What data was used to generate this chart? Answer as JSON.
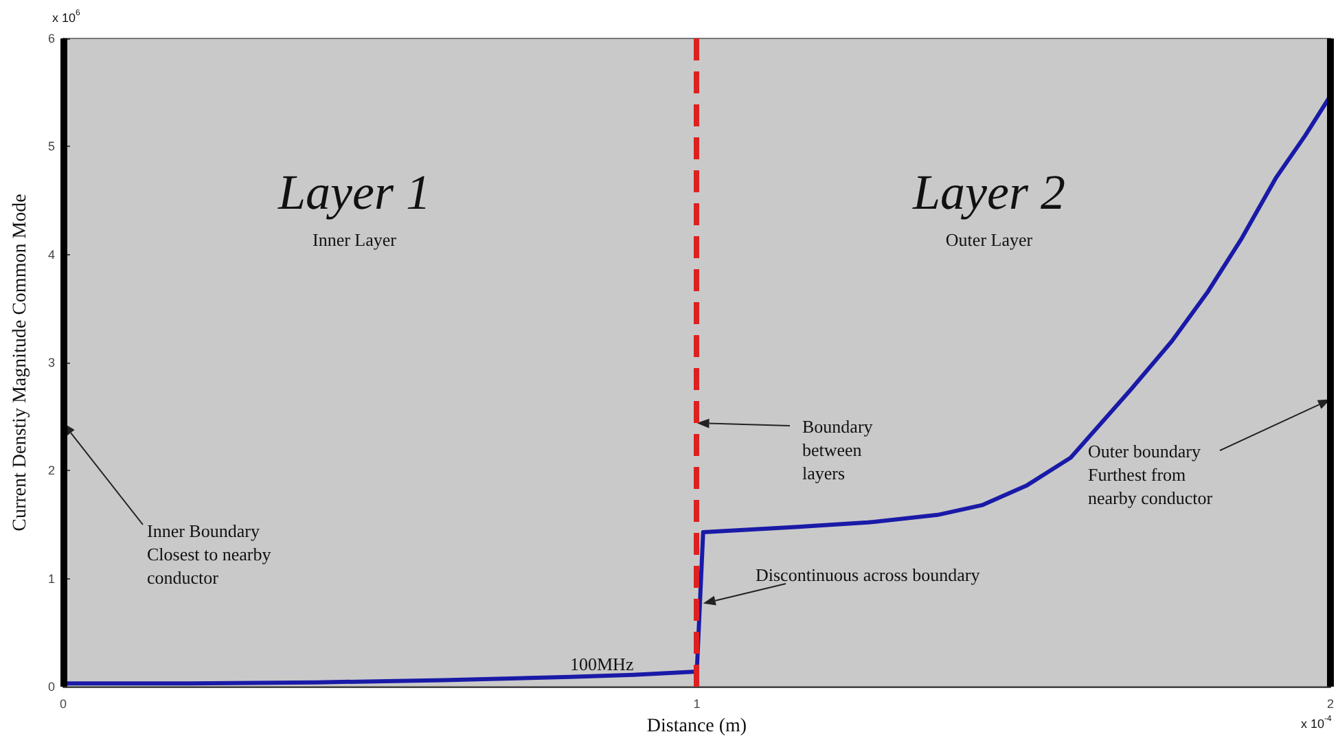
{
  "chart_data": {
    "type": "line",
    "xlabel": "Distance (m)",
    "ylabel": "Current Denstiy Magnitude Common Mode",
    "xlim": [
      0,
      2
    ],
    "xticks": [
      0,
      1,
      2
    ],
    "ylim": [
      0,
      6
    ],
    "yticks": [
      0,
      1,
      2,
      3,
      4,
      5,
      6
    ],
    "grid": false,
    "legend": false,
    "marker": "none",
    "line_style": "solid",
    "series": [
      {
        "name": "100MHz",
        "color": "#1a1aa8",
        "x": [
          0,
          0.2,
          0.4,
          0.6,
          0.8,
          0.9,
          1.0,
          1.01,
          1.16,
          1.27,
          1.38,
          1.45,
          1.52,
          1.59,
          1.685,
          1.75,
          1.807,
          1.86,
          1.914,
          1.96,
          2.0
        ],
        "values": [
          0.03,
          0.03,
          0.04,
          0.06,
          0.09,
          0.11,
          0.14,
          1.43,
          1.48,
          1.52,
          1.59,
          1.68,
          1.86,
          2.12,
          2.75,
          3.2,
          3.66,
          4.15,
          4.71,
          5.1,
          5.47
        ]
      }
    ],
    "ref_lines": [
      {
        "axis": "x",
        "value": 1,
        "color": "#dd2020",
        "line_style": "dashed"
      },
      {
        "axis": "x",
        "value": 0,
        "color": "#000000",
        "line_style": "solid"
      },
      {
        "axis": "x",
        "value": 2,
        "color": "#000000",
        "line_style": "solid"
      }
    ],
    "annotations": [
      "Layer 1",
      "Inner Layer",
      "Layer 2",
      "Outer Layer",
      "x 10$^{6}$",
      "x 10$^{-4}$",
      {
        "text": "Inner Boundary\nClosest to nearby\nconductor",
        "x": 0,
        "y": 2.44
      },
      {
        "text": "Boundary\nbetween\nlayers",
        "x": 1,
        "y": 2.44
      },
      {
        "text": "Outer boundary\nFurthest from\nnearby conductor",
        "x": 2,
        "y": 2.66
      },
      {
        "text": "Discontinuous across boundary",
        "x": 1.01,
        "y": 0.77
      }
    ]
  }
}
